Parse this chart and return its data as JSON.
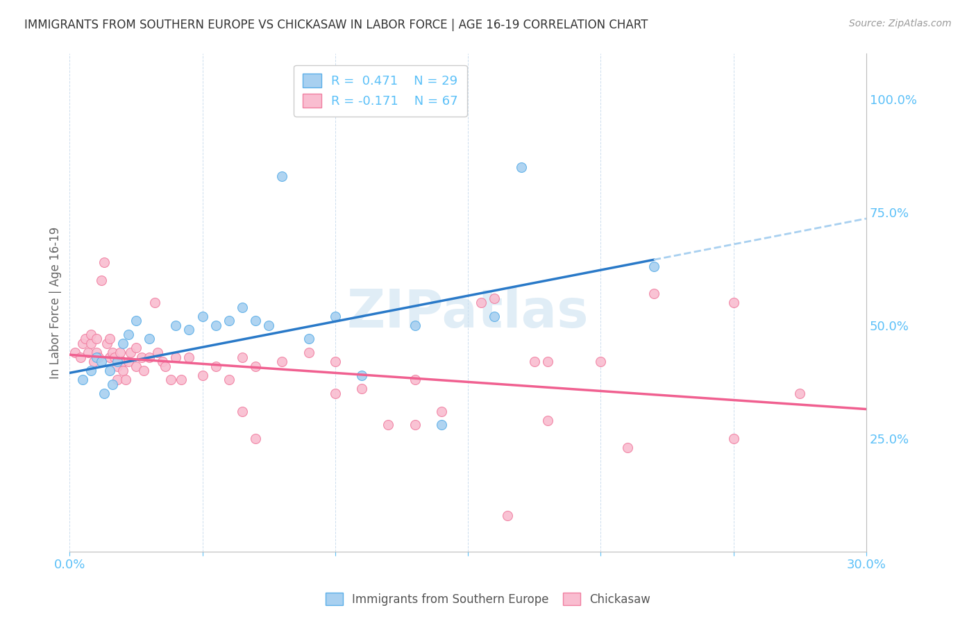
{
  "title": "IMMIGRANTS FROM SOUTHERN EUROPE VS CHICKASAW IN LABOR FORCE | AGE 16-19 CORRELATION CHART",
  "source": "Source: ZipAtlas.com",
  "ylabel": "In Labor Force | Age 16-19",
  "xlim": [
    0.0,
    0.3
  ],
  "ylim": [
    0.0,
    1.1
  ],
  "xticks": [
    0.0,
    0.05,
    0.1,
    0.15,
    0.2,
    0.25,
    0.3
  ],
  "yticks_right": [
    0.25,
    0.5,
    0.75,
    1.0
  ],
  "yticklabels_right": [
    "25.0%",
    "50.0%",
    "75.0%",
    "100.0%"
  ],
  "blue_color": "#A8D0F0",
  "pink_color": "#F9BDD0",
  "blue_edge_color": "#5BAEE8",
  "pink_edge_color": "#F07EA0",
  "blue_line_color": "#2979C8",
  "pink_line_color": "#F06090",
  "blue_dash_color": "#A8D0F0",
  "legend_R1": "R =  0.471",
  "legend_N1": "N = 29",
  "legend_R2": "R = -0.171",
  "legend_N2": "N = 67",
  "watermark": "ZIPatlas",
  "blue_line_x0": 0.0,
  "blue_line_y0": 0.395,
  "blue_line_x1": 0.22,
  "blue_line_y1": 0.645,
  "pink_line_x0": 0.0,
  "pink_line_y0": 0.435,
  "pink_line_x1": 0.3,
  "pink_line_y1": 0.315,
  "blue_scatter_x": [
    0.005,
    0.008,
    0.01,
    0.012,
    0.013,
    0.015,
    0.016,
    0.018,
    0.02,
    0.022,
    0.025,
    0.03,
    0.04,
    0.045,
    0.05,
    0.055,
    0.06,
    0.065,
    0.07,
    0.075,
    0.08,
    0.09,
    0.1,
    0.11,
    0.13,
    0.14,
    0.16,
    0.17,
    0.22
  ],
  "blue_scatter_y": [
    0.38,
    0.4,
    0.43,
    0.42,
    0.35,
    0.4,
    0.37,
    0.42,
    0.46,
    0.48,
    0.51,
    0.47,
    0.5,
    0.49,
    0.52,
    0.5,
    0.51,
    0.54,
    0.51,
    0.5,
    0.83,
    0.47,
    0.52,
    0.39,
    0.5,
    0.28,
    0.52,
    0.85,
    0.63
  ],
  "pink_scatter_x": [
    0.002,
    0.004,
    0.005,
    0.006,
    0.007,
    0.008,
    0.008,
    0.009,
    0.01,
    0.01,
    0.011,
    0.012,
    0.013,
    0.014,
    0.015,
    0.015,
    0.016,
    0.017,
    0.018,
    0.018,
    0.019,
    0.02,
    0.02,
    0.021,
    0.022,
    0.023,
    0.025,
    0.025,
    0.027,
    0.028,
    0.03,
    0.032,
    0.033,
    0.035,
    0.036,
    0.038,
    0.04,
    0.042,
    0.045,
    0.05,
    0.055,
    0.06,
    0.065,
    0.07,
    0.08,
    0.09,
    0.1,
    0.11,
    0.13,
    0.14,
    0.155,
    0.16,
    0.175,
    0.18,
    0.2,
    0.22,
    0.25,
    0.07,
    0.12,
    0.18,
    0.25,
    0.065,
    0.1,
    0.13,
    0.165,
    0.21,
    0.275
  ],
  "pink_scatter_y": [
    0.44,
    0.43,
    0.46,
    0.47,
    0.44,
    0.46,
    0.48,
    0.42,
    0.44,
    0.47,
    0.43,
    0.6,
    0.64,
    0.46,
    0.43,
    0.47,
    0.44,
    0.43,
    0.38,
    0.41,
    0.44,
    0.42,
    0.4,
    0.38,
    0.42,
    0.44,
    0.45,
    0.41,
    0.43,
    0.4,
    0.43,
    0.55,
    0.44,
    0.42,
    0.41,
    0.38,
    0.43,
    0.38,
    0.43,
    0.39,
    0.41,
    0.38,
    0.43,
    0.41,
    0.42,
    0.44,
    0.42,
    0.36,
    0.38,
    0.31,
    0.55,
    0.56,
    0.42,
    0.42,
    0.42,
    0.57,
    0.55,
    0.25,
    0.28,
    0.29,
    0.25,
    0.31,
    0.35,
    0.28,
    0.08,
    0.23,
    0.35
  ]
}
